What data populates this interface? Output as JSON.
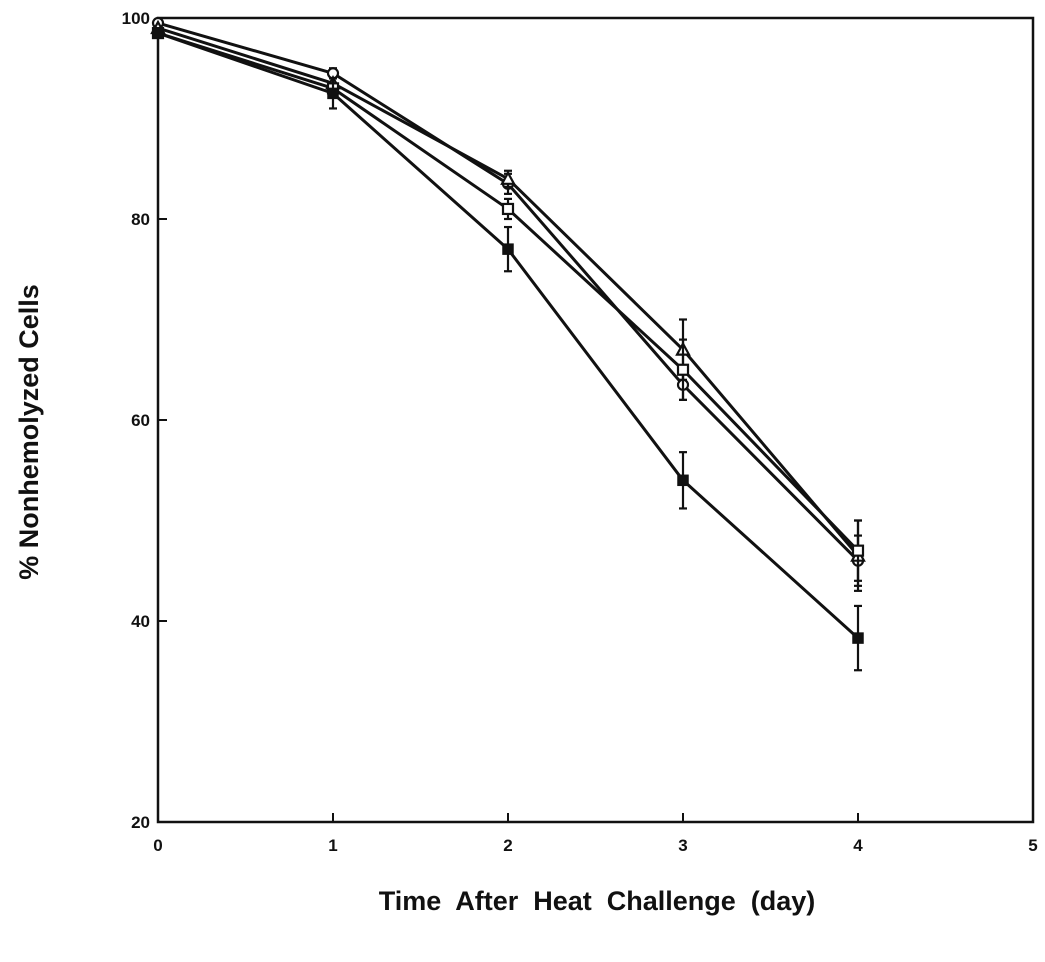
{
  "chart_data": {
    "type": "line",
    "title": "",
    "xlabel": "Time  After  Heat  Challenge  (day)",
    "ylabel": "% Nonhemolyzed Cells",
    "xlim": [
      0,
      5
    ],
    "ylim": [
      20,
      100
    ],
    "xticks": [
      "0",
      "1",
      "2",
      "3",
      "4",
      "5"
    ],
    "yticks": [
      "20",
      "40",
      "60",
      "80",
      "100"
    ],
    "grid": false,
    "legend": "none",
    "x": [
      0,
      1,
      2,
      3,
      4
    ],
    "series": [
      {
        "marker": "open-circle",
        "values": [
          99.5,
          94.5,
          83.5,
          63.5,
          46.0
        ],
        "errors": [
          0,
          0.5,
          1.0,
          1.5,
          2.5
        ]
      },
      {
        "marker": "open-triangle",
        "values": [
          99.0,
          93.5,
          84.0,
          67.0,
          46.5
        ],
        "errors": [
          0,
          0.5,
          0.8,
          3.0,
          3.5
        ]
      },
      {
        "marker": "open-square",
        "values": [
          98.5,
          93.0,
          81.0,
          65.0,
          47.0
        ],
        "errors": [
          0,
          0.5,
          1.0,
          3.0,
          3.0
        ]
      },
      {
        "marker": "filled-square",
        "values": [
          98.5,
          92.5,
          77.0,
          54.0,
          38.3
        ],
        "errors": [
          0,
          1.5,
          2.2,
          2.8,
          3.2
        ]
      }
    ]
  }
}
